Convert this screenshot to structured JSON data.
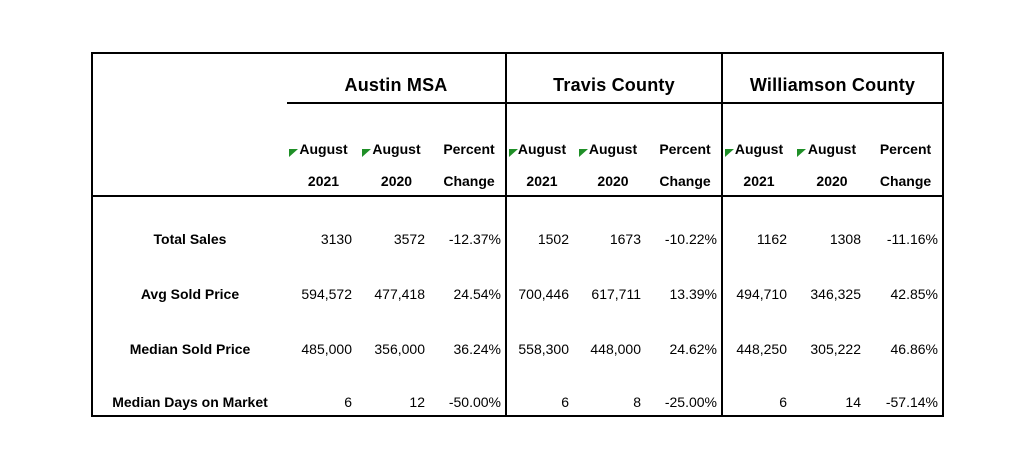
{
  "page": {
    "background": "#ffffff",
    "border_color": "#000000",
    "flag_color": "#1f8f27"
  },
  "table": {
    "sections": [
      {
        "title": "Austin MSA",
        "columns": [
          {
            "month": "August",
            "year": "2021",
            "flag": true
          },
          {
            "month": "August",
            "year": "2020",
            "flag": true
          },
          {
            "month": "Percent",
            "year": "Change",
            "flag": false
          }
        ]
      },
      {
        "title": "Travis County",
        "columns": [
          {
            "month": "August",
            "year": "2021",
            "flag": true
          },
          {
            "month": "August",
            "year": "2020",
            "flag": true
          },
          {
            "month": "Percent",
            "year": "Change",
            "flag": false
          }
        ]
      },
      {
        "title": "Williamson County",
        "columns": [
          {
            "month": "August",
            "year": "2021",
            "flag": true
          },
          {
            "month": "August",
            "year": "2020",
            "flag": true
          },
          {
            "month": "Percent",
            "year": "Change",
            "flag": false
          }
        ]
      }
    ],
    "rows": [
      {
        "label": "Total Sales",
        "values": [
          "3130",
          "3572",
          "-12.37%",
          "1502",
          "1673",
          "-10.22%",
          "1162",
          "1308",
          "-11.16%"
        ]
      },
      {
        "label": "Avg Sold Price",
        "values": [
          "594,572",
          "477,418",
          "24.54%",
          "700,446",
          "617,711",
          "13.39%",
          "494,710",
          "346,325",
          "42.85%"
        ]
      },
      {
        "label": "Median Sold Price",
        "values": [
          "485,000",
          "356,000",
          "36.24%",
          "558,300",
          "448,000",
          "24.62%",
          "448,250",
          "305,222",
          "46.86%"
        ]
      },
      {
        "label": "Median Days on Market",
        "values": [
          "6",
          "12",
          "-50.00%",
          "6",
          "8",
          "-25.00%",
          "6",
          "14",
          "-57.14%"
        ]
      }
    ]
  },
  "chart_data": {
    "type": "table",
    "column_groups": [
      "Austin MSA",
      "Travis County",
      "Williamson County"
    ],
    "columns_per_group": [
      "August 2021",
      "August 2020",
      "Percent Change"
    ],
    "rows": [
      {
        "metric": "Total Sales",
        "austin_msa": {
          "aug_2021": 3130,
          "aug_2020": 3572,
          "percent_change": "-12.37%"
        },
        "travis_county": {
          "aug_2021": 1502,
          "aug_2020": 1673,
          "percent_change": "-10.22%"
        },
        "williamson_county": {
          "aug_2021": 1162,
          "aug_2020": 1308,
          "percent_change": "-11.16%"
        }
      },
      {
        "metric": "Avg Sold Price",
        "austin_msa": {
          "aug_2021": 594572,
          "aug_2020": 477418,
          "percent_change": "24.54%"
        },
        "travis_county": {
          "aug_2021": 700446,
          "aug_2020": 617711,
          "percent_change": "13.39%"
        },
        "williamson_county": {
          "aug_2021": 494710,
          "aug_2020": 346325,
          "percent_change": "42.85%"
        }
      },
      {
        "metric": "Median Sold Price",
        "austin_msa": {
          "aug_2021": 485000,
          "aug_2020": 356000,
          "percent_change": "36.24%"
        },
        "travis_county": {
          "aug_2021": 558300,
          "aug_2020": 448000,
          "percent_change": "24.62%"
        },
        "williamson_county": {
          "aug_2021": 448250,
          "aug_2020": 305222,
          "percent_change": "46.86%"
        }
      },
      {
        "metric": "Median Days on Market",
        "austin_msa": {
          "aug_2021": 6,
          "aug_2020": 12,
          "percent_change": "-50.00%"
        },
        "travis_county": {
          "aug_2021": 6,
          "aug_2020": 8,
          "percent_change": "-25.00%"
        },
        "williamson_county": {
          "aug_2021": 6,
          "aug_2020": 14,
          "percent_change": "-57.14%"
        }
      }
    ]
  }
}
